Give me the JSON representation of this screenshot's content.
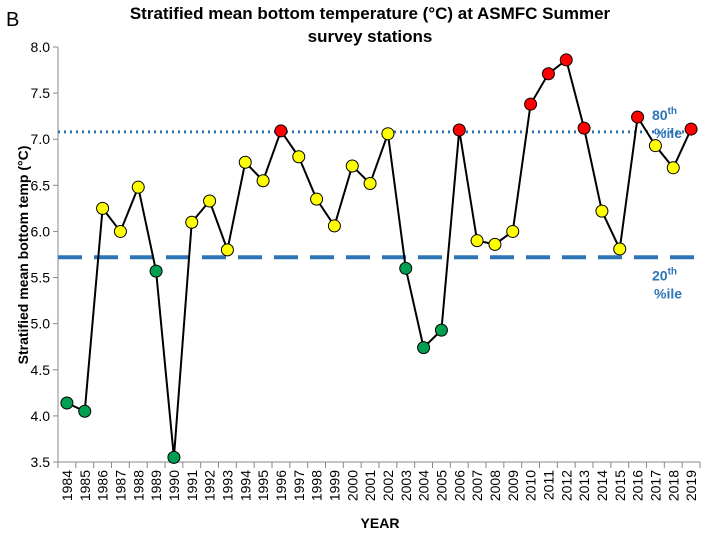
{
  "chart_data": {
    "type": "line",
    "panel_label": "B",
    "title": [
      "Stratified mean bottom temperature (°C) at ASMFC Summer",
      "survey stations"
    ],
    "y_label": "Stratified mean bottom temp (°C)",
    "x_label": "YEAR",
    "categories": [
      "1984",
      "1985",
      "1986",
      "1987",
      "1988",
      "1989",
      "1990",
      "1991",
      "1992",
      "1993",
      "1994",
      "1995",
      "1996",
      "1997",
      "1998",
      "1999",
      "2000",
      "2001",
      "2002",
      "2003",
      "2004",
      "2005",
      "2006",
      "2007",
      "2008",
      "2009",
      "2010",
      "2011",
      "2012",
      "2013",
      "2014",
      "2015",
      "2016",
      "2017",
      "2018",
      "2019"
    ],
    "series": [
      {
        "color": "#000000",
        "values": [
          4.14,
          4.05,
          6.25,
          6.0,
          6.48,
          5.57,
          3.55,
          6.1,
          6.33,
          5.8,
          6.75,
          6.55,
          7.09,
          6.81,
          6.35,
          6.06,
          6.71,
          6.52,
          7.06,
          5.6,
          4.74,
          4.93,
          7.1,
          5.9,
          5.86,
          6.0,
          7.38,
          7.71,
          7.86,
          7.12,
          6.22,
          5.81,
          7.24,
          6.93,
          6.69,
          7.11
        ],
        "point_colors": [
          "#00a050",
          "#00a050",
          "#ffff00",
          "#ffff00",
          "#ffff00",
          "#00a050",
          "#00a050",
          "#ffff00",
          "#ffff00",
          "#ffff00",
          "#ffff00",
          "#ffff00",
          "#ff0000",
          "#ffff00",
          "#ffff00",
          "#ffff00",
          "#ffff00",
          "#ffff00",
          "#ffff00",
          "#00a050",
          "#00a050",
          "#00a050",
          "#ff0000",
          "#ffff00",
          "#ffff00",
          "#ffff00",
          "#ff0000",
          "#ff0000",
          "#ff0000",
          "#ff0000",
          "#ffff00",
          "#ffff00",
          "#ff0000",
          "#ffff00",
          "#ffff00",
          "#ff0000"
        ]
      }
    ],
    "reference_lines": [
      {
        "value": 7.08,
        "style": "dotted",
        "color": "#2e75b6",
        "label": [
          "80",
          "th",
          "%ile"
        ]
      },
      {
        "value": 5.72,
        "style": "dashed",
        "color": "#2e75b6",
        "label": [
          "20",
          "th",
          "%ile"
        ]
      }
    ],
    "ylim": [
      3.5,
      8.0
    ],
    "yticks": [
      {
        "value": 3.5,
        "label": "3.5"
      },
      {
        "value": 4,
        "label": "4.0"
      },
      {
        "value": 4.5,
        "label": "4.5"
      },
      {
        "value": 5,
        "label": "5.0"
      },
      {
        "value": 5.5,
        "label": "5.5"
      },
      {
        "value": 6,
        "label": "6.0"
      },
      {
        "value": 6.5,
        "label": "6.5"
      },
      {
        "value": 7,
        "label": "7.0"
      },
      {
        "value": 7.5,
        "label": "7.5"
      },
      {
        "value": 8,
        "label": "8.0"
      }
    ]
  }
}
